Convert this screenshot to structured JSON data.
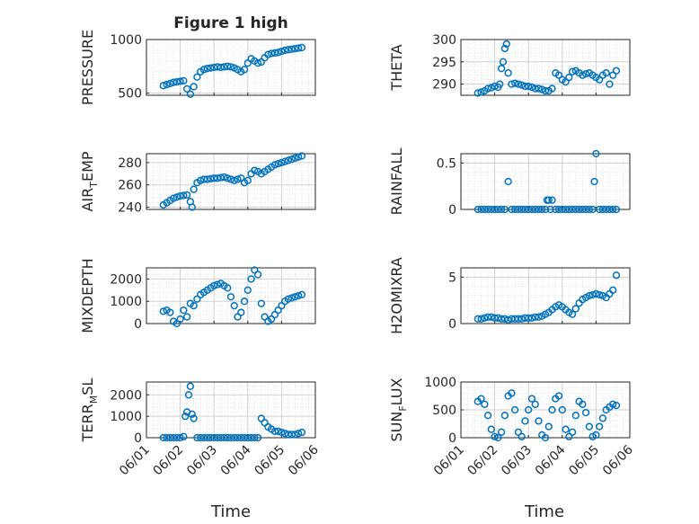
{
  "figure_title": "Figure 1 high",
  "x_axis_label": "Time",
  "x_tick_labels": [
    "06/01",
    "06/02",
    "06/03",
    "06/04",
    "06/05",
    "06/06"
  ],
  "marker_color": "#0072BD",
  "chart_data": [
    {
      "id": "pressure",
      "type": "scatter",
      "ylabel": "PRESSURE",
      "xlim": [
        1.0,
        6.0
      ],
      "ylim": [
        480,
        1000
      ],
      "yticks": [
        500,
        1000
      ],
      "ytick_labels": [
        "500",
        "1000"
      ],
      "x": [
        1.5,
        1.6,
        1.7,
        1.8,
        1.9,
        2.0,
        2.1,
        2.2,
        2.3,
        2.4,
        2.5,
        2.6,
        2.7,
        2.8,
        2.9,
        3.0,
        3.1,
        3.2,
        3.3,
        3.4,
        3.5,
        3.6,
        3.7,
        3.8,
        3.9,
        4.0,
        4.1,
        4.2,
        4.3,
        4.4,
        4.5,
        4.6,
        4.7,
        4.8,
        4.9,
        5.0,
        5.1,
        5.2,
        5.3,
        5.4,
        5.5,
        5.6
      ],
      "y": [
        570,
        580,
        590,
        600,
        605,
        610,
        615,
        540,
        490,
        560,
        650,
        700,
        720,
        730,
        735,
        740,
        745,
        740,
        745,
        750,
        745,
        735,
        720,
        700,
        720,
        780,
        820,
        800,
        780,
        790,
        830,
        860,
        870,
        875,
        880,
        890,
        900,
        905,
        910,
        915,
        920,
        925
      ]
    },
    {
      "id": "theta",
      "type": "scatter",
      "ylabel": "THETA",
      "xlim": [
        1.0,
        6.0
      ],
      "ylim": [
        287.5,
        300
      ],
      "yticks": [
        290,
        295,
        300
      ],
      "ytick_labels": [
        "290",
        "295",
        "300"
      ],
      "x": [
        1.5,
        1.6,
        1.7,
        1.8,
        1.9,
        2.0,
        2.1,
        2.15,
        2.2,
        2.25,
        2.3,
        2.35,
        2.4,
        2.5,
        2.6,
        2.7,
        2.8,
        2.9,
        3.0,
        3.1,
        3.2,
        3.3,
        3.4,
        3.5,
        3.6,
        3.7,
        3.8,
        3.9,
        4.0,
        4.1,
        4.2,
        4.3,
        4.4,
        4.5,
        4.6,
        4.7,
        4.8,
        4.9,
        5.0,
        5.1,
        5.2,
        5.3,
        5.4,
        5.5,
        5.6
      ],
      "y": [
        288,
        288.2,
        288.5,
        289,
        289.2,
        289.5,
        289.3,
        290,
        293.5,
        295,
        298,
        299,
        292.5,
        290,
        290.2,
        290,
        289.8,
        289.5,
        289.5,
        289.3,
        289,
        289,
        288.8,
        288.5,
        288.5,
        289,
        292.5,
        292,
        291,
        290.5,
        291.5,
        292.8,
        293,
        292.5,
        292,
        292.3,
        292.5,
        292,
        291.5,
        291,
        292,
        292.5,
        290,
        292,
        293
      ]
    },
    {
      "id": "air_temp",
      "type": "scatter",
      "ylabel": "AIR_TEMP",
      "ylabel_main": "AIR",
      "ylabel_sub": "T",
      "ylabel_rest": "EMP",
      "xlim": [
        1.0,
        6.0
      ],
      "ylim": [
        238,
        288
      ],
      "yticks": [
        240,
        260,
        280
      ],
      "ytick_labels": [
        "240",
        "260",
        "280"
      ],
      "x": [
        1.5,
        1.6,
        1.7,
        1.8,
        1.9,
        2.0,
        2.1,
        2.2,
        2.3,
        2.35,
        2.4,
        2.5,
        2.6,
        2.7,
        2.8,
        2.9,
        3.0,
        3.1,
        3.2,
        3.3,
        3.4,
        3.5,
        3.6,
        3.7,
        3.8,
        3.9,
        4.0,
        4.1,
        4.2,
        4.3,
        4.4,
        4.5,
        4.6,
        4.7,
        4.8,
        4.9,
        5.0,
        5.1,
        5.2,
        5.3,
        5.4,
        5.5,
        5.6
      ],
      "y": [
        242,
        244,
        246,
        248,
        249,
        250,
        250.5,
        251,
        245,
        240,
        256,
        262,
        264,
        265,
        265,
        265.5,
        266,
        266,
        266.5,
        267,
        266,
        265,
        264,
        265,
        266,
        262,
        264,
        270,
        273,
        272,
        270,
        272,
        274,
        276,
        278,
        279,
        280,
        281,
        282,
        283,
        284,
        285,
        286
      ]
    },
    {
      "id": "rainfall",
      "type": "scatter",
      "ylabel": "RAINFALL",
      "xlim": [
        1.0,
        6.0
      ],
      "ylim": [
        0,
        0.6
      ],
      "yticks": [
        0,
        0.5
      ],
      "ytick_labels": [
        "0",
        "0.5"
      ],
      "x": [
        1.5,
        1.6,
        1.7,
        1.8,
        1.9,
        2.0,
        2.1,
        2.2,
        2.3,
        2.4,
        2.5,
        2.6,
        2.7,
        2.8,
        2.9,
        3.0,
        3.1,
        3.2,
        3.3,
        3.4,
        3.5,
        3.55,
        3.6,
        3.65,
        3.7,
        3.8,
        3.9,
        4.0,
        4.1,
        4.2,
        4.3,
        4.4,
        4.5,
        4.6,
        4.7,
        4.8,
        4.9,
        4.95,
        5.0,
        5.1,
        5.2,
        5.3,
        5.4,
        5.5,
        5.6
      ],
      "y": [
        0,
        0,
        0,
        0,
        0,
        0,
        0,
        0,
        0,
        0.3,
        0,
        0,
        0,
        0,
        0,
        0,
        0,
        0,
        0,
        0,
        0,
        0.1,
        0.1,
        0,
        0.1,
        0,
        0,
        0,
        0,
        0,
        0,
        0,
        0,
        0,
        0,
        0,
        0,
        0.3,
        0.6,
        0,
        0,
        0,
        0,
        0,
        0
      ]
    },
    {
      "id": "mixdepth",
      "type": "scatter",
      "ylabel": "MIXDEPTH",
      "xlim": [
        1.0,
        6.0
      ],
      "ylim": [
        0,
        2500
      ],
      "yticks": [
        0,
        1000,
        2000
      ],
      "ytick_labels": [
        "0",
        "1000",
        "2000"
      ],
      "x": [
        1.5,
        1.6,
        1.7,
        1.8,
        1.9,
        2.0,
        2.1,
        2.2,
        2.3,
        2.4,
        2.5,
        2.6,
        2.7,
        2.8,
        2.9,
        3.0,
        3.1,
        3.2,
        3.3,
        3.4,
        3.5,
        3.6,
        3.7,
        3.8,
        3.9,
        4.0,
        4.1,
        4.2,
        4.3,
        4.4,
        4.5,
        4.6,
        4.7,
        4.8,
        4.9,
        5.0,
        5.1,
        5.2,
        5.3,
        5.4,
        5.5,
        5.6
      ],
      "y": [
        550,
        600,
        500,
        100,
        0,
        200,
        600,
        300,
        900,
        800,
        1100,
        1300,
        1400,
        1500,
        1600,
        1700,
        1750,
        1800,
        1700,
        1600,
        1200,
        800,
        300,
        500,
        1000,
        1500,
        2000,
        2400,
        2200,
        900,
        300,
        100,
        200,
        400,
        600,
        800,
        1000,
        1100,
        1150,
        1200,
        1250,
        1300
      ]
    },
    {
      "id": "h2omixra",
      "type": "scatter",
      "ylabel": "H2OMIXRA",
      "xlim": [
        1.0,
        6.0
      ],
      "ylim": [
        0,
        6
      ],
      "yticks": [
        0,
        5
      ],
      "ytick_labels": [
        "0",
        "5"
      ],
      "x": [
        1.5,
        1.6,
        1.7,
        1.8,
        1.9,
        2.0,
        2.1,
        2.2,
        2.3,
        2.4,
        2.5,
        2.6,
        2.7,
        2.8,
        2.9,
        3.0,
        3.1,
        3.2,
        3.3,
        3.4,
        3.5,
        3.6,
        3.7,
        3.8,
        3.9,
        4.0,
        4.1,
        4.2,
        4.3,
        4.4,
        4.5,
        4.6,
        4.7,
        4.8,
        4.9,
        5.0,
        5.1,
        5.2,
        5.3,
        5.4,
        5.5,
        5.6
      ],
      "y": [
        0.5,
        0.5,
        0.6,
        0.7,
        0.7,
        0.6,
        0.6,
        0.5,
        0.5,
        0.4,
        0.5,
        0.5,
        0.5,
        0.5,
        0.6,
        0.6,
        0.6,
        0.7,
        0.7,
        0.8,
        1.0,
        1.2,
        1.5,
        1.8,
        2.0,
        1.8,
        1.5,
        1.2,
        1.0,
        1.6,
        2.2,
        2.6,
        2.8,
        3.0,
        3.1,
        3.2,
        3.1,
        3.0,
        2.8,
        3.2,
        3.6,
        5.2
      ]
    },
    {
      "id": "terr_msl",
      "type": "scatter",
      "ylabel": "TERR_MSL",
      "ylabel_main": "TERR",
      "ylabel_sub": "M",
      "ylabel_rest": "SL",
      "xlim": [
        1.0,
        6.0
      ],
      "ylim": [
        0,
        2600
      ],
      "yticks": [
        0,
        1000,
        2000
      ],
      "ytick_labels": [
        "0",
        "1000",
        "2000"
      ],
      "x": [
        1.5,
        1.6,
        1.7,
        1.8,
        1.9,
        2.0,
        2.1,
        2.15,
        2.2,
        2.25,
        2.3,
        2.35,
        2.4,
        2.5,
        2.6,
        2.7,
        2.8,
        2.9,
        3.0,
        3.1,
        3.2,
        3.3,
        3.4,
        3.5,
        3.6,
        3.7,
        3.8,
        3.9,
        4.0,
        4.1,
        4.2,
        4.3,
        4.4,
        4.5,
        4.6,
        4.7,
        4.8,
        4.9,
        5.0,
        5.1,
        5.2,
        5.3,
        5.4,
        5.5,
        5.6
      ],
      "y": [
        0,
        0,
        0,
        0,
        0,
        0,
        50,
        1000,
        1200,
        2000,
        2400,
        1100,
        900,
        0,
        0,
        0,
        0,
        0,
        0,
        0,
        0,
        0,
        0,
        0,
        0,
        0,
        0,
        0,
        0,
        0,
        0,
        0,
        900,
        700,
        500,
        400,
        300,
        300,
        250,
        200,
        150,
        150,
        150,
        200,
        250
      ]
    },
    {
      "id": "sun_flux",
      "type": "scatter",
      "ylabel": "SUN_FLUX",
      "ylabel_main": "SUN",
      "ylabel_sub": "F",
      "ylabel_rest": "LUX",
      "xlim": [
        1.0,
        6.0
      ],
      "ylim": [
        0,
        1000
      ],
      "yticks": [
        0,
        500,
        1000
      ],
      "ytick_labels": [
        "0",
        "500",
        "1000"
      ],
      "x": [
        1.5,
        1.6,
        1.7,
        1.8,
        1.9,
        2.0,
        2.1,
        2.2,
        2.3,
        2.4,
        2.5,
        2.6,
        2.7,
        2.8,
        2.9,
        3.0,
        3.1,
        3.2,
        3.3,
        3.4,
        3.5,
        3.6,
        3.7,
        3.8,
        3.9,
        4.0,
        4.1,
        4.2,
        4.3,
        4.4,
        4.5,
        4.6,
        4.7,
        4.8,
        4.9,
        5.0,
        5.1,
        5.2,
        5.3,
        5.4,
        5.5,
        5.6
      ],
      "y": [
        650,
        700,
        600,
        400,
        150,
        20,
        0,
        100,
        400,
        750,
        800,
        500,
        100,
        20,
        300,
        500,
        700,
        600,
        300,
        50,
        0,
        200,
        500,
        700,
        750,
        500,
        150,
        20,
        100,
        400,
        650,
        600,
        450,
        200,
        20,
        50,
        200,
        350,
        500,
        550,
        600,
        580
      ]
    }
  ]
}
